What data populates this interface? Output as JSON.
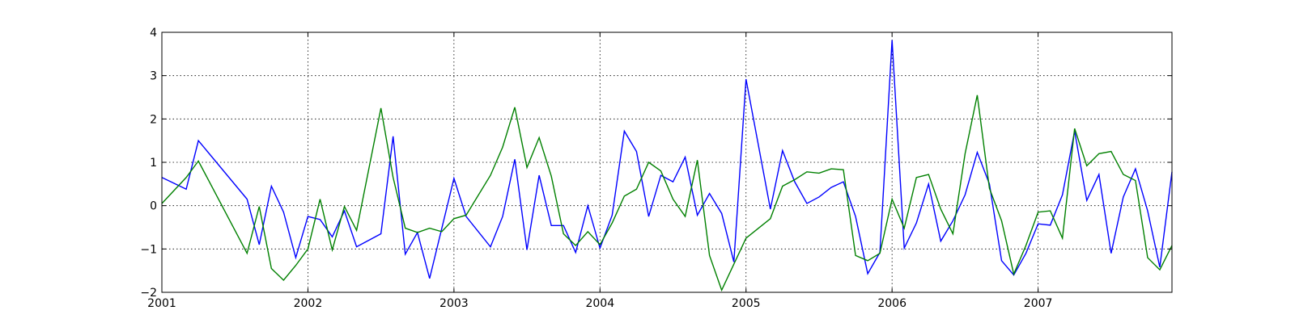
{
  "chart_data": {
    "type": "line",
    "title": "",
    "xlabel": "",
    "ylabel": "",
    "xlim": [
      "2001-01-01",
      "2007-12-01"
    ],
    "ylim": [
      -2,
      4
    ],
    "grid": true,
    "x_ticks": [
      "2001",
      "2002",
      "2003",
      "2004",
      "2005",
      "2006",
      "2007"
    ],
    "y_ticks": [
      "4",
      "3",
      "2",
      "1",
      "0",
      "−1",
      "−2"
    ],
    "series": [
      {
        "color": "#0000ff",
        "points": [
          [
            "2001-01-01",
            0.65
          ],
          [
            "2001-03-01",
            0.38
          ],
          [
            "2001-04-01",
            1.5
          ],
          [
            "2001-08-01",
            0.15
          ],
          [
            "2001-09-01",
            -0.9
          ],
          [
            "2001-10-01",
            0.45
          ],
          [
            "2001-11-01",
            -0.15
          ],
          [
            "2001-12-01",
            -1.2
          ],
          [
            "2002-01-01",
            -0.25
          ],
          [
            "2002-02-01",
            -0.32
          ],
          [
            "2002-03-01",
            -0.72
          ],
          [
            "2002-04-01",
            -0.12
          ],
          [
            "2002-05-01",
            -0.95
          ],
          [
            "2002-07-01",
            -0.65
          ],
          [
            "2002-08-01",
            1.6
          ],
          [
            "2002-09-01",
            -1.12
          ],
          [
            "2002-10-01",
            -0.62
          ],
          [
            "2002-11-01",
            -1.68
          ],
          [
            "2003-01-01",
            0.63
          ],
          [
            "2003-02-01",
            -0.25
          ],
          [
            "2003-04-01",
            -0.95
          ],
          [
            "2003-05-01",
            -0.25
          ],
          [
            "2003-06-01",
            1.07
          ],
          [
            "2003-07-01",
            -1.02
          ],
          [
            "2003-08-01",
            0.7
          ],
          [
            "2003-09-01",
            -0.46
          ],
          [
            "2003-10-01",
            -0.46
          ],
          [
            "2003-11-01",
            -1.08
          ],
          [
            "2003-12-01",
            0.0
          ],
          [
            "2004-01-01",
            -0.98
          ],
          [
            "2004-02-01",
            -0.22
          ],
          [
            "2004-03-01",
            1.72
          ],
          [
            "2004-04-01",
            1.25
          ],
          [
            "2004-05-01",
            -0.25
          ],
          [
            "2004-06-01",
            0.7
          ],
          [
            "2004-07-01",
            0.55
          ],
          [
            "2004-08-01",
            1.12
          ],
          [
            "2004-09-01",
            -0.22
          ],
          [
            "2004-10-01",
            0.28
          ],
          [
            "2004-11-01",
            -0.18
          ],
          [
            "2004-12-01",
            -1.3
          ],
          [
            "2005-01-01",
            2.92
          ],
          [
            "2005-03-01",
            -0.08
          ],
          [
            "2005-04-01",
            1.27
          ],
          [
            "2005-05-01",
            0.55
          ],
          [
            "2005-06-01",
            0.05
          ],
          [
            "2005-07-01",
            0.2
          ],
          [
            "2005-08-01",
            0.42
          ],
          [
            "2005-09-01",
            0.55
          ],
          [
            "2005-10-01",
            -0.25
          ],
          [
            "2005-11-01",
            -1.57
          ],
          [
            "2005-12-01",
            -1.08
          ],
          [
            "2006-01-01",
            3.82
          ],
          [
            "2006-02-01",
            -0.98
          ],
          [
            "2006-03-01",
            -0.4
          ],
          [
            "2006-04-01",
            0.5
          ],
          [
            "2006-05-01",
            -0.82
          ],
          [
            "2006-06-01",
            -0.35
          ],
          [
            "2006-07-01",
            0.25
          ],
          [
            "2006-08-01",
            1.23
          ],
          [
            "2006-09-01",
            0.5
          ],
          [
            "2006-10-01",
            -1.27
          ],
          [
            "2006-11-01",
            -1.6
          ],
          [
            "2006-12-01",
            -1.1
          ],
          [
            "2007-01-01",
            -0.42
          ],
          [
            "2007-02-01",
            -0.45
          ],
          [
            "2007-03-01",
            0.25
          ],
          [
            "2007-04-01",
            1.72
          ],
          [
            "2007-05-01",
            0.12
          ],
          [
            "2007-06-01",
            0.72
          ],
          [
            "2007-07-01",
            -1.1
          ],
          [
            "2007-08-01",
            0.2
          ],
          [
            "2007-09-01",
            0.85
          ],
          [
            "2007-10-01",
            -0.12
          ],
          [
            "2007-11-01",
            -1.42
          ],
          [
            "2007-12-01",
            0.78
          ]
        ]
      },
      {
        "color": "#008000",
        "points": [
          [
            "2001-01-01",
            0.05
          ],
          [
            "2001-03-01",
            0.65
          ],
          [
            "2001-04-01",
            1.03
          ],
          [
            "2001-08-01",
            -1.1
          ],
          [
            "2001-09-01",
            -0.02
          ],
          [
            "2001-10-01",
            -1.45
          ],
          [
            "2001-11-01",
            -1.72
          ],
          [
            "2001-12-01",
            -1.38
          ],
          [
            "2002-01-01",
            -1.0
          ],
          [
            "2002-02-01",
            0.15
          ],
          [
            "2002-03-01",
            -1.02
          ],
          [
            "2002-04-01",
            -0.02
          ],
          [
            "2002-05-01",
            -0.57
          ],
          [
            "2002-07-01",
            2.25
          ],
          [
            "2002-08-01",
            0.65
          ],
          [
            "2002-09-01",
            -0.52
          ],
          [
            "2002-10-01",
            -0.62
          ],
          [
            "2002-11-01",
            -0.52
          ],
          [
            "2002-12-01",
            -0.6
          ],
          [
            "2003-01-01",
            -0.3
          ],
          [
            "2003-02-01",
            -0.22
          ],
          [
            "2003-04-01",
            0.7
          ],
          [
            "2003-05-01",
            1.35
          ],
          [
            "2003-06-01",
            2.27
          ],
          [
            "2003-07-01",
            0.88
          ],
          [
            "2003-08-01",
            1.57
          ],
          [
            "2003-09-01",
            0.68
          ],
          [
            "2003-10-01",
            -0.65
          ],
          [
            "2003-11-01",
            -0.92
          ],
          [
            "2003-12-01",
            -0.6
          ],
          [
            "2004-01-01",
            -0.9
          ],
          [
            "2004-02-01",
            -0.4
          ],
          [
            "2004-03-01",
            0.22
          ],
          [
            "2004-04-01",
            0.38
          ],
          [
            "2004-05-01",
            1.0
          ],
          [
            "2004-06-01",
            0.8
          ],
          [
            "2004-07-01",
            0.15
          ],
          [
            "2004-08-01",
            -0.25
          ],
          [
            "2004-09-01",
            1.05
          ],
          [
            "2004-10-01",
            -1.15
          ],
          [
            "2004-11-01",
            -1.95
          ],
          [
            "2005-01-01",
            -0.75
          ],
          [
            "2005-03-01",
            -0.3
          ],
          [
            "2005-04-01",
            0.45
          ],
          [
            "2005-05-01",
            0.6
          ],
          [
            "2005-06-01",
            0.78
          ],
          [
            "2005-07-01",
            0.75
          ],
          [
            "2005-08-01",
            0.85
          ],
          [
            "2005-09-01",
            0.83
          ],
          [
            "2005-10-01",
            -1.15
          ],
          [
            "2005-11-01",
            -1.27
          ],
          [
            "2005-12-01",
            -1.1
          ],
          [
            "2006-01-01",
            0.15
          ],
          [
            "2006-02-01",
            -0.52
          ],
          [
            "2006-03-01",
            0.65
          ],
          [
            "2006-04-01",
            0.72
          ],
          [
            "2006-05-01",
            -0.08
          ],
          [
            "2006-06-01",
            -0.65
          ],
          [
            "2006-07-01",
            1.2
          ],
          [
            "2006-08-01",
            2.55
          ],
          [
            "2006-09-01",
            0.4
          ],
          [
            "2006-10-01",
            -0.35
          ],
          [
            "2006-11-01",
            -1.58
          ],
          [
            "2006-12-01",
            -0.92
          ],
          [
            "2007-01-01",
            -0.15
          ],
          [
            "2007-02-01",
            -0.12
          ],
          [
            "2007-03-01",
            -0.75
          ],
          [
            "2007-04-01",
            1.78
          ],
          [
            "2007-05-01",
            0.92
          ],
          [
            "2007-06-01",
            1.2
          ],
          [
            "2007-07-01",
            1.25
          ],
          [
            "2007-08-01",
            0.72
          ],
          [
            "2007-09-01",
            0.58
          ],
          [
            "2007-10-01",
            -1.2
          ],
          [
            "2007-11-01",
            -1.48
          ],
          [
            "2007-12-01",
            -0.92
          ]
        ]
      }
    ]
  }
}
